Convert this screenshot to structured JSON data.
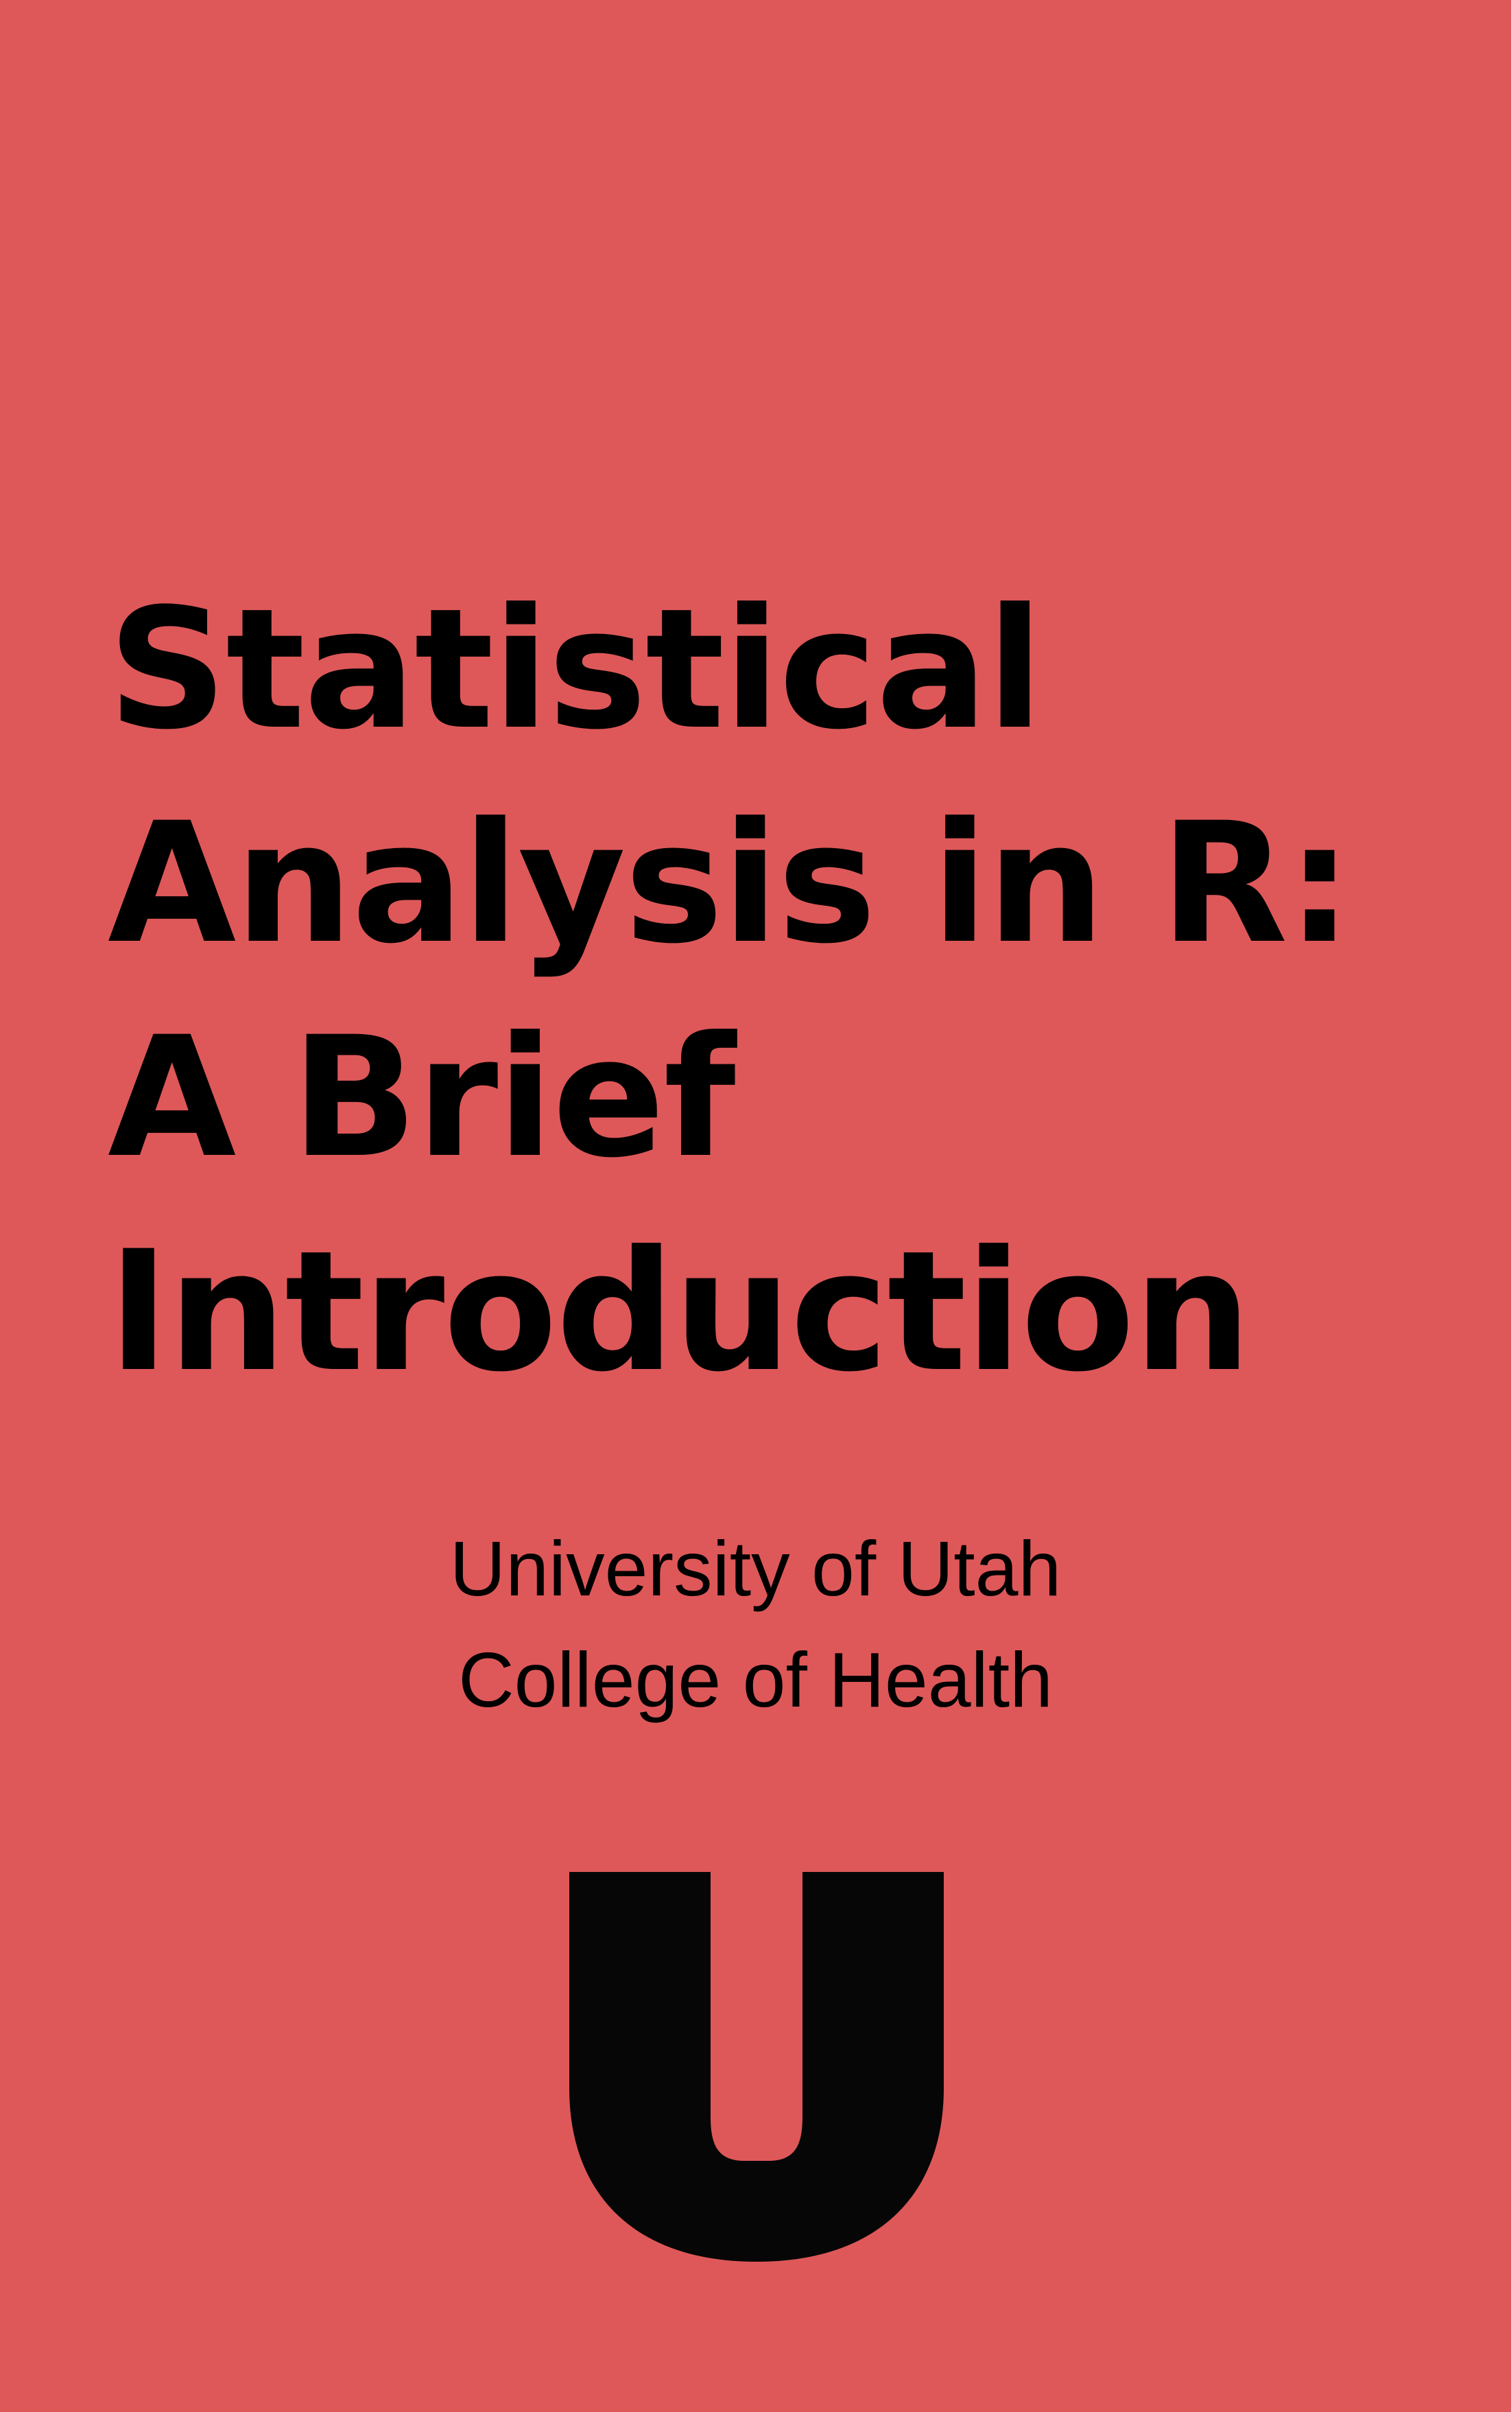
{
  "cover": {
    "background_color": "#de5859",
    "text_color": "#000000",
    "title_lines": [
      "Statistical",
      "Analysis in R:",
      "A Brief",
      "Introduction"
    ],
    "subtitle_lines": [
      "University of Utah",
      "College of Health"
    ],
    "logo": {
      "icon": "university-u-logo-icon",
      "color": "#060606",
      "lettering": "U"
    }
  }
}
